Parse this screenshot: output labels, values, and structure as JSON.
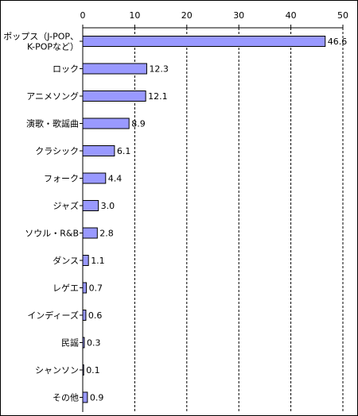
{
  "chart_data": {
    "type": "bar",
    "orientation": "horizontal",
    "categories": [
      [
        "ポップス（J-POP、",
        "K-POPなど）"
      ],
      [
        "ロック"
      ],
      [
        "アニメソング"
      ],
      [
        "演歌・歌謡曲"
      ],
      [
        "クラシック"
      ],
      [
        "フォーク"
      ],
      [
        "ジャズ"
      ],
      [
        "ソウル・R&B"
      ],
      [
        "ダンス"
      ],
      [
        "レゲエ"
      ],
      [
        "インディーズ"
      ],
      [
        "民謡"
      ],
      [
        "シャンソン"
      ],
      [
        "その他"
      ]
    ],
    "values": [
      46.6,
      12.3,
      12.1,
      8.9,
      6.1,
      4.4,
      3.0,
      2.8,
      1.1,
      0.7,
      0.6,
      0.3,
      0.1,
      0.9
    ],
    "value_labels": [
      "46.6",
      "12.3",
      "12.1",
      "8.9",
      "6.1",
      "4.4",
      "3.0",
      "2.8",
      "1.1",
      "0.7",
      "0.6",
      "0.3",
      "0.1",
      "0.9"
    ],
    "xlim": [
      0,
      50
    ],
    "x_ticks": [
      0,
      10,
      20,
      30,
      40,
      50
    ],
    "x_tick_labels": [
      "0",
      "10",
      "20",
      "30",
      "40",
      "50"
    ],
    "x_axis_position": "top",
    "grid": "vertical dashed",
    "legend": "none",
    "bar_color": "#9999ff",
    "bar_edge_color": "#000000",
    "grid_color": "#000000"
  }
}
